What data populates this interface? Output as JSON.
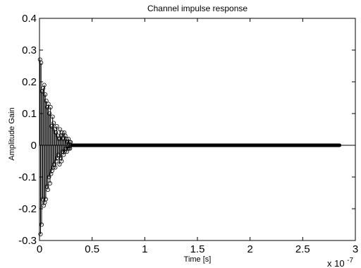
{
  "chart_data": {
    "type": "stem",
    "title": "Channel impulse response",
    "xlabel": "Time [s]",
    "ylabel": "Amplitude Gain",
    "x_multiplier_label": "x 10",
    "x_multiplier_exponent": "-7",
    "x_scale": 1e-07,
    "xlim": [
      0,
      3
    ],
    "ylim": [
      -0.3,
      0.4
    ],
    "xticks": [
      0,
      0.5,
      1,
      1.5,
      2,
      2.5,
      3
    ],
    "xtick_labels": [
      "0",
      "0.5",
      "1",
      "1.5",
      "2",
      "2.5",
      "3"
    ],
    "yticks": [
      -0.3,
      -0.2,
      -0.1,
      0,
      0.1,
      0.2,
      0.3,
      0.4
    ],
    "ytick_labels": [
      "-0.3",
      "-0.2",
      "-0.1",
      "0",
      "0.1",
      "0.2",
      "0.3",
      "0.4"
    ],
    "grid": false,
    "zero_tail": {
      "x_start": 0.31,
      "x_end": 2.85,
      "value": 0
    },
    "series": [
      {
        "x": [
          0.005,
          0.01,
          0.015,
          0.02,
          0.025,
          0.03,
          0.035,
          0.04,
          0.045,
          0.05,
          0.055,
          0.06,
          0.065,
          0.07,
          0.075,
          0.08,
          0.085,
          0.09,
          0.095,
          0.1,
          0.105,
          0.11,
          0.115,
          0.12,
          0.125,
          0.13,
          0.135,
          0.14,
          0.145,
          0.15,
          0.155,
          0.16,
          0.165,
          0.17,
          0.175,
          0.18,
          0.185,
          0.19,
          0.195,
          0.2,
          0.205,
          0.21,
          0.215,
          0.22,
          0.225,
          0.23,
          0.235,
          0.24,
          0.245,
          0.25,
          0.255,
          0.26,
          0.265,
          0.27,
          0.275,
          0.28,
          0.285,
          0.29,
          0.295,
          0.3
        ],
        "y": [
          0.27,
          -0.28,
          0.26,
          -0.25,
          0.17,
          -0.17,
          0.18,
          -0.19,
          0.19,
          -0.18,
          0.16,
          -0.17,
          0.14,
          -0.13,
          0.12,
          -0.14,
          0.13,
          -0.1,
          0.1,
          -0.12,
          0.12,
          -0.09,
          0.06,
          -0.08,
          0.09,
          -0.07,
          0.07,
          -0.06,
          0.05,
          -0.07,
          0.04,
          -0.05,
          0.06,
          -0.04,
          0.03,
          -0.03,
          0.02,
          -0.06,
          0.05,
          -0.04,
          0.03,
          -0.05,
          0.04,
          -0.02,
          0.02,
          -0.03,
          0.04,
          -0.02,
          0.03,
          -0.01,
          0.02,
          -0.02,
          0.01,
          -0.01,
          0.02,
          -0.01,
          0.01,
          -0.01,
          0.01,
          0.0
        ]
      }
    ]
  }
}
